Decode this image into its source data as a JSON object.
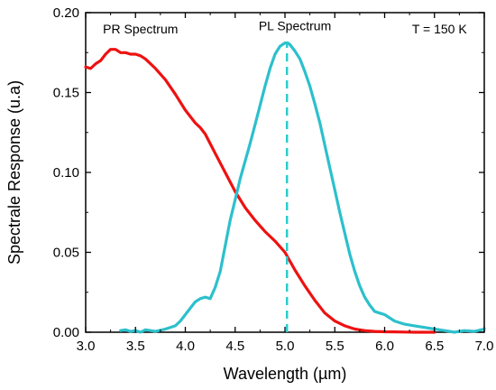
{
  "chart_data": {
    "type": "line",
    "title": "",
    "xlabel": "Wavelength (µm)",
    "ylabel": "Spectrale Response (u.a)",
    "xlim": [
      3.0,
      7.0
    ],
    "ylim": [
      0.0,
      0.2
    ],
    "x_ticks": [
      "3.0",
      "3.5",
      "4.0",
      "4.5",
      "5.0",
      "5.5",
      "6.0",
      "6.5",
      "7.0"
    ],
    "y_ticks": [
      "0.00",
      "0.05",
      "0.10",
      "0.15",
      "0.20"
    ],
    "grid": false,
    "annotations": [
      {
        "text": "PR Spectrum",
        "x": 3.55,
        "y": 0.187
      },
      {
        "text": "PL Spectrum",
        "x": 5.1,
        "y": 0.189
      },
      {
        "text": "T = 150 K",
        "x": 6.55,
        "y": 0.187
      }
    ],
    "vline": {
      "x": 5.02,
      "y_top": 0.181,
      "color": "#2CCCCC",
      "style": "dashed"
    },
    "series": [
      {
        "name": "",
        "color": "#EE1111",
        "x": [
          3.0,
          3.05,
          3.1,
          3.15,
          3.2,
          3.25,
          3.3,
          3.35,
          3.4,
          3.45,
          3.5,
          3.55,
          3.6,
          3.7,
          3.8,
          3.9,
          4.0,
          4.1,
          4.15,
          4.2,
          4.25,
          4.3,
          4.4,
          4.5,
          4.6,
          4.7,
          4.8,
          4.9,
          5.0,
          5.1,
          5.2,
          5.3,
          5.4,
          5.5,
          5.6,
          5.7,
          5.8,
          5.9,
          6.0,
          6.1,
          6.2,
          6.3,
          6.5
        ],
        "values": [
          0.166,
          0.165,
          0.168,
          0.17,
          0.174,
          0.177,
          0.177,
          0.175,
          0.175,
          0.174,
          0.174,
          0.173,
          0.171,
          0.165,
          0.158,
          0.149,
          0.139,
          0.131,
          0.128,
          0.124,
          0.118,
          0.112,
          0.1,
          0.088,
          0.078,
          0.07,
          0.063,
          0.057,
          0.05,
          0.039,
          0.029,
          0.02,
          0.012,
          0.007,
          0.004,
          0.002,
          0.001,
          0.0005,
          0.0003,
          0.0002,
          0.0001,
          0.0,
          0.0
        ]
      },
      {
        "name": "",
        "color": "#2CC0CC",
        "x": [
          3.35,
          3.4,
          3.45,
          3.5,
          3.55,
          3.6,
          3.65,
          3.7,
          3.8,
          3.9,
          3.95,
          4.0,
          4.05,
          4.1,
          4.15,
          4.2,
          4.25,
          4.3,
          4.35,
          4.4,
          4.45,
          4.5,
          4.55,
          4.6,
          4.65,
          4.7,
          4.75,
          4.8,
          4.85,
          4.9,
          4.95,
          5.0,
          5.03,
          5.05,
          5.1,
          5.15,
          5.2,
          5.25,
          5.3,
          5.35,
          5.4,
          5.45,
          5.5,
          5.55,
          5.6,
          5.65,
          5.7,
          5.75,
          5.8,
          5.85,
          5.9,
          5.95,
          6.0,
          6.1,
          6.2,
          6.3,
          6.4,
          6.5,
          6.6,
          6.7,
          6.8,
          6.9,
          7.0
        ],
        "values": [
          0.001,
          0.0015,
          0.0005,
          0.001,
          0.0,
          0.0015,
          0.001,
          0.0005,
          0.002,
          0.004,
          0.007,
          0.011,
          0.015,
          0.019,
          0.021,
          0.022,
          0.021,
          0.028,
          0.038,
          0.054,
          0.07,
          0.083,
          0.096,
          0.107,
          0.118,
          0.13,
          0.142,
          0.154,
          0.165,
          0.174,
          0.179,
          0.181,
          0.181,
          0.18,
          0.176,
          0.171,
          0.163,
          0.154,
          0.143,
          0.131,
          0.117,
          0.103,
          0.089,
          0.075,
          0.062,
          0.049,
          0.038,
          0.029,
          0.022,
          0.017,
          0.013,
          0.012,
          0.011,
          0.007,
          0.005,
          0.004,
          0.003,
          0.002,
          0.001,
          0.0,
          0.001,
          0.0005,
          0.002
        ]
      }
    ]
  }
}
